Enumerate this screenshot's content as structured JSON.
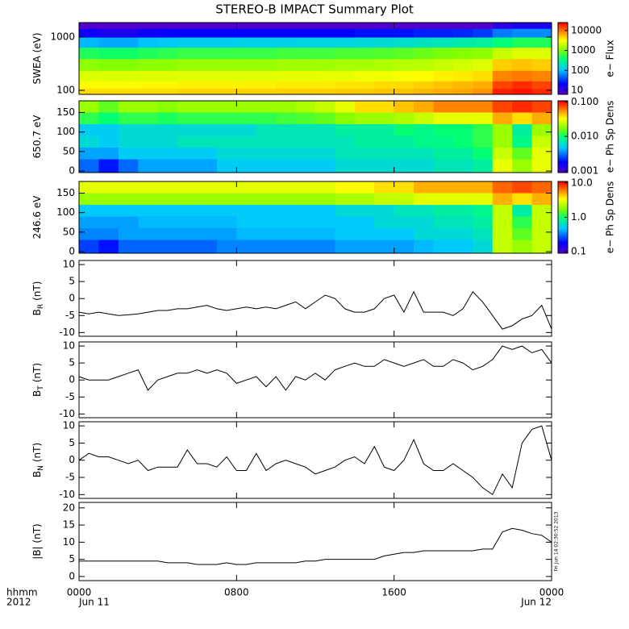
{
  "chart_data": {
    "type": "multi-panel",
    "title": "STEREO-B IMPACT Summary Plot",
    "x": [
      0,
      0.5,
      1,
      1.5,
      2,
      2.5,
      3,
      3.5,
      4,
      4.5,
      5,
      5.5,
      6,
      6.5,
      7,
      7.5,
      8,
      8.5,
      9,
      9.5,
      10,
      10.5,
      11,
      11.5,
      12,
      12.5,
      13,
      13.5,
      14,
      14.5,
      15,
      15.5,
      16,
      16.5,
      17,
      17.5,
      18,
      18.5,
      19,
      19.5,
      20,
      20.5,
      21,
      21.5,
      22,
      22.5,
      23,
      23.5,
      24
    ],
    "xlim": [
      0,
      24
    ],
    "xticks": [
      {
        "value": 0,
        "label": "0000"
      },
      {
        "value": 8,
        "label": "0800"
      },
      {
        "value": 16,
        "label": "1600"
      },
      {
        "value": 24,
        "label": "0000"
      }
    ],
    "date_labels": [
      {
        "value": 0,
        "label": "Jun 11"
      },
      {
        "value": 24,
        "label": "Jun 12"
      }
    ],
    "time_label": "hhmm",
    "year_label": "2012",
    "stamp": "Fri Jun 14 02:30:52 2013",
    "panels": [
      {
        "type": "spectrogram",
        "ylabel": "SWEA (eV)",
        "yscale": "log",
        "ylim": [
          84,
          1870
        ],
        "yticks": [
          100,
          1000
        ],
        "times": [
          0.5,
          1.5,
          2.5,
          3.5,
          4.5,
          5.5,
          6.5,
          7.5,
          8.5,
          9.5,
          10.5,
          11.5,
          12.5,
          13.5,
          14.5,
          15.5,
          16.5,
          17.5,
          18.5,
          19.5,
          20.5,
          21.5,
          22.5,
          23.5
        ],
        "rows": [
          1700,
          1200,
          800,
          500,
          300,
          180,
          120,
          95
        ],
        "z": [
          [
            7,
            7,
            7,
            7,
            7,
            7,
            7,
            7,
            7,
            7,
            7,
            7,
            7,
            7,
            7,
            7,
            7,
            7,
            7,
            7,
            7,
            12,
            15,
            15
          ],
          [
            18,
            15,
            15,
            18,
            20,
            22,
            22,
            22,
            22,
            22,
            22,
            22,
            22,
            22,
            25,
            25,
            25,
            28,
            28,
            30,
            35,
            60,
            70,
            70
          ],
          [
            100,
            90,
            90,
            110,
            120,
            130,
            130,
            130,
            140,
            140,
            140,
            150,
            150,
            150,
            160,
            170,
            180,
            200,
            220,
            250,
            280,
            400,
            500,
            500
          ],
          [
            500,
            450,
            450,
            500,
            550,
            600,
            600,
            600,
            600,
            600,
            650,
            650,
            650,
            700,
            700,
            750,
            800,
            900,
            1000,
            1100,
            1200,
            2000,
            2500,
            2500
          ],
          [
            1200,
            1100,
            1100,
            1200,
            1200,
            1300,
            1300,
            1300,
            1300,
            1300,
            1400,
            1400,
            1400,
            1500,
            1500,
            1600,
            1700,
            1800,
            2000,
            2200,
            2500,
            5000,
            5500,
            5000
          ],
          [
            2500,
            2400,
            2400,
            2500,
            2500,
            2600,
            2600,
            2600,
            2600,
            2600,
            2700,
            2700,
            2800,
            2800,
            3000,
            3000,
            3200,
            3500,
            3800,
            4000,
            4500,
            9000,
            10000,
            9000
          ],
          [
            3500,
            3500,
            3500,
            3600,
            3600,
            3800,
            3800,
            3800,
            3800,
            3800,
            4000,
            4000,
            4000,
            4200,
            4200,
            4500,
            4500,
            5000,
            5500,
            6000,
            6500,
            15000,
            18000,
            15000
          ],
          [
            4500,
            4500,
            4500,
            4500,
            4500,
            4800,
            4800,
            4800,
            4800,
            4800,
            5000,
            5000,
            5000,
            5200,
            5200,
            5500,
            5500,
            6000,
            6500,
            7000,
            8000,
            20000,
            22000,
            18000
          ]
        ],
        "zscale": "log",
        "clim": [
          6.3,
          25000
        ],
        "cticks": [
          10,
          100,
          1000,
          10000
        ],
        "cbar_label": "e− Flux"
      },
      {
        "type": "spectrogram",
        "ylabel": "650.7 eV",
        "ylim": [
          -4,
          180
        ],
        "yticks": [
          0,
          50,
          100,
          150
        ],
        "times": [
          0.5,
          1.5,
          2.5,
          3.5,
          4.5,
          5.5,
          6.5,
          7.5,
          8.5,
          9.5,
          10.5,
          11.5,
          12.5,
          13.5,
          14.5,
          15.5,
          16.5,
          17.5,
          18.5,
          19.5,
          20.5,
          21.5,
          22.5,
          23.5
        ],
        "rows": [
          165,
          135,
          105,
          75,
          45,
          15
        ],
        "z": [
          [
            0.02,
            0.015,
            0.02,
            0.02,
            0.018,
            0.02,
            0.02,
            0.02,
            0.02,
            0.02,
            0.02,
            0.022,
            0.025,
            0.03,
            0.04,
            0.04,
            0.045,
            0.05,
            0.06,
            0.06,
            0.06,
            0.08,
            0.09,
            0.08
          ],
          [
            0.012,
            0.01,
            0.012,
            0.012,
            0.011,
            0.012,
            0.012,
            0.012,
            0.012,
            0.012,
            0.013,
            0.014,
            0.015,
            0.018,
            0.02,
            0.02,
            0.022,
            0.025,
            0.03,
            0.03,
            0.03,
            0.05,
            0.04,
            0.05
          ],
          [
            0.005,
            0.005,
            0.006,
            0.006,
            0.006,
            0.006,
            0.006,
            0.006,
            0.006,
            0.007,
            0.007,
            0.007,
            0.007,
            0.008,
            0.008,
            0.008,
            0.01,
            0.009,
            0.01,
            0.01,
            0.012,
            0.02,
            0.008,
            0.02
          ],
          [
            0.006,
            0.005,
            0.006,
            0.006,
            0.006,
            0.007,
            0.007,
            0.007,
            0.007,
            0.007,
            0.007,
            0.007,
            0.007,
            0.007,
            0.008,
            0.008,
            0.008,
            0.009,
            0.009,
            0.01,
            0.012,
            0.02,
            0.009,
            0.025
          ],
          [
            0.004,
            0.004,
            0.005,
            0.005,
            0.005,
            0.005,
            0.005,
            0.006,
            0.006,
            0.006,
            0.006,
            0.006,
            0.006,
            0.007,
            0.007,
            0.007,
            0.007,
            0.007,
            0.008,
            0.008,
            0.01,
            0.025,
            0.015,
            0.03
          ],
          [
            0.003,
            0.002,
            0.003,
            0.004,
            0.004,
            0.004,
            0.004,
            0.005,
            0.005,
            0.005,
            0.005,
            0.005,
            0.005,
            0.006,
            0.006,
            0.006,
            0.006,
            0.006,
            0.007,
            0.007,
            0.008,
            0.03,
            0.02,
            0.03
          ]
        ],
        "zscale": "log",
        "clim": [
          0.00089,
          0.108
        ],
        "cticks": [
          {
            "value": 0.1,
            "label": "0.100"
          },
          {
            "value": 0.01,
            "label": "0.010"
          },
          {
            "value": 0.001,
            "label": "0.001"
          }
        ],
        "cbar_label": "e− Ph Sp Dens"
      },
      {
        "type": "spectrogram",
        "ylabel": "246.6 eV",
        "ylim": [
          -4,
          180
        ],
        "yticks": [
          0,
          50,
          100,
          150
        ],
        "times": [
          0.5,
          1.5,
          2.5,
          3.5,
          4.5,
          5.5,
          6.5,
          7.5,
          8.5,
          9.5,
          10.5,
          11.5,
          12.5,
          13.5,
          14.5,
          15.5,
          16.5,
          17.5,
          18.5,
          19.5,
          20.5,
          21.5,
          22.5,
          23.5
        ],
        "rows": [
          165,
          135,
          105,
          75,
          45,
          15
        ],
        "z": [
          [
            3,
            3,
            3,
            3,
            3,
            3,
            3,
            3,
            3,
            3,
            3,
            3,
            3,
            3.5,
            3.5,
            4,
            4,
            5,
            5,
            5,
            5,
            7,
            8,
            7
          ],
          [
            2,
            2,
            2,
            2,
            2,
            2,
            2,
            2,
            2,
            2,
            2,
            2,
            2,
            2.2,
            2.2,
            2.5,
            2.5,
            3,
            3,
            3,
            3,
            5,
            4,
            5
          ],
          [
            0.5,
            0.5,
            0.5,
            0.5,
            0.5,
            0.5,
            0.5,
            0.5,
            0.5,
            0.5,
            0.5,
            0.5,
            0.5,
            0.6,
            0.6,
            0.6,
            0.7,
            0.7,
            0.8,
            0.8,
            0.9,
            2.5,
            0.8,
            2.5
          ],
          [
            0.4,
            0.4,
            0.4,
            0.45,
            0.45,
            0.45,
            0.45,
            0.45,
            0.5,
            0.5,
            0.5,
            0.5,
            0.5,
            0.5,
            0.5,
            0.6,
            0.6,
            0.6,
            0.7,
            0.7,
            0.8,
            2.5,
            1.2,
            2.5
          ],
          [
            0.35,
            0.35,
            0.4,
            0.4,
            0.4,
            0.4,
            0.4,
            0.4,
            0.45,
            0.45,
            0.45,
            0.45,
            0.45,
            0.5,
            0.5,
            0.5,
            0.5,
            0.6,
            0.6,
            0.6,
            0.7,
            2.5,
            1.5,
            2.5
          ],
          [
            0.25,
            0.2,
            0.3,
            0.3,
            0.3,
            0.3,
            0.3,
            0.35,
            0.35,
            0.35,
            0.35,
            0.35,
            0.35,
            0.4,
            0.4,
            0.4,
            0.4,
            0.45,
            0.5,
            0.5,
            0.6,
            2.5,
            2,
            2.5
          ]
        ],
        "zscale": "log",
        "clim": [
          0.09,
          11
        ],
        "cticks": [
          {
            "value": 10,
            "label": "10.0"
          },
          {
            "value": 1,
            "label": "1.0"
          },
          {
            "value": 0.1,
            "label": "0.1"
          }
        ],
        "cbar_label": "e− Ph Sp Dens"
      },
      {
        "type": "line",
        "ylabel": "B",
        "ylabel_sub": "R",
        "ylabel_unit": "(nT)",
        "ylim": [
          -11.1,
          11.2
        ],
        "yticks": [
          -10,
          -5,
          0,
          5,
          10
        ],
        "color": "#000000",
        "values": [
          -4,
          -4.5,
          -4,
          -4.5,
          -5,
          -4.8,
          -4.5,
          -4,
          -3.5,
          -3.5,
          -3,
          -3,
          -2.5,
          -2,
          -3,
          -3.5,
          -3,
          -2.5,
          -3,
          -2.5,
          -3,
          -2,
          -1,
          -3,
          -1,
          1,
          0,
          -3,
          -4,
          -4,
          -3,
          0,
          1,
          -4,
          2,
          -4,
          -4,
          -4,
          -5,
          -3,
          2,
          -1,
          -5,
          -9,
          -8,
          -6,
          -5,
          -2,
          -9
        ]
      },
      {
        "type": "line",
        "ylabel": "B",
        "ylabel_sub": "T",
        "ylabel_unit": "(nT)",
        "ylim": [
          -11.1,
          11.2
        ],
        "yticks": [
          -10,
          -5,
          0,
          5,
          10
        ],
        "color": "#000000",
        "values": [
          1,
          0,
          0,
          0,
          1,
          2,
          3,
          -3,
          0,
          1,
          2,
          2,
          3,
          2,
          3,
          2,
          -1,
          0,
          1,
          -2,
          1,
          -3,
          1,
          0,
          2,
          0,
          3,
          4,
          5,
          4,
          4,
          6,
          5,
          4,
          5,
          6,
          4,
          4,
          6,
          5,
          3,
          4,
          6,
          10,
          9,
          10,
          8,
          9,
          5
        ]
      },
      {
        "type": "line",
        "ylabel": "B",
        "ylabel_sub": "N",
        "ylabel_unit": "(nT)",
        "ylim": [
          -11.1,
          11.2
        ],
        "yticks": [
          -10,
          -5,
          0,
          5,
          10
        ],
        "color": "#000000",
        "values": [
          0,
          2,
          1,
          1,
          0,
          -1,
          0,
          -3,
          -2,
          -2,
          -2,
          3,
          -1,
          -1,
          -2,
          1,
          -3,
          -3,
          2,
          -3,
          -1,
          0,
          -1,
          -2,
          -4,
          -3,
          -2,
          0,
          1,
          -1,
          4,
          -2,
          -3,
          0,
          6,
          -1,
          -3,
          -3,
          -1,
          -3,
          -5,
          -8,
          -10,
          -4,
          -8,
          5,
          9,
          10,
          0
        ]
      },
      {
        "type": "line",
        "ylabel": "|B| (nT)",
        "ylim": [
          -1.2,
          21.6
        ],
        "yticks": [
          0,
          5,
          10,
          15,
          20
        ],
        "color": "#000000",
        "values": [
          4.5,
          4.5,
          4.5,
          4.5,
          4.5,
          4.5,
          4.5,
          4.5,
          4.5,
          4,
          4,
          4,
          3.5,
          3.5,
          3.5,
          4,
          3.5,
          3.5,
          4,
          4,
          4,
          4,
          4,
          4.5,
          4.5,
          5,
          5,
          5,
          5,
          5,
          5,
          6,
          6.5,
          7,
          7,
          7.5,
          7.5,
          7.5,
          7.5,
          7.5,
          7.5,
          8,
          8,
          13,
          14,
          13.5,
          12.5,
          12,
          10
        ]
      }
    ]
  }
}
